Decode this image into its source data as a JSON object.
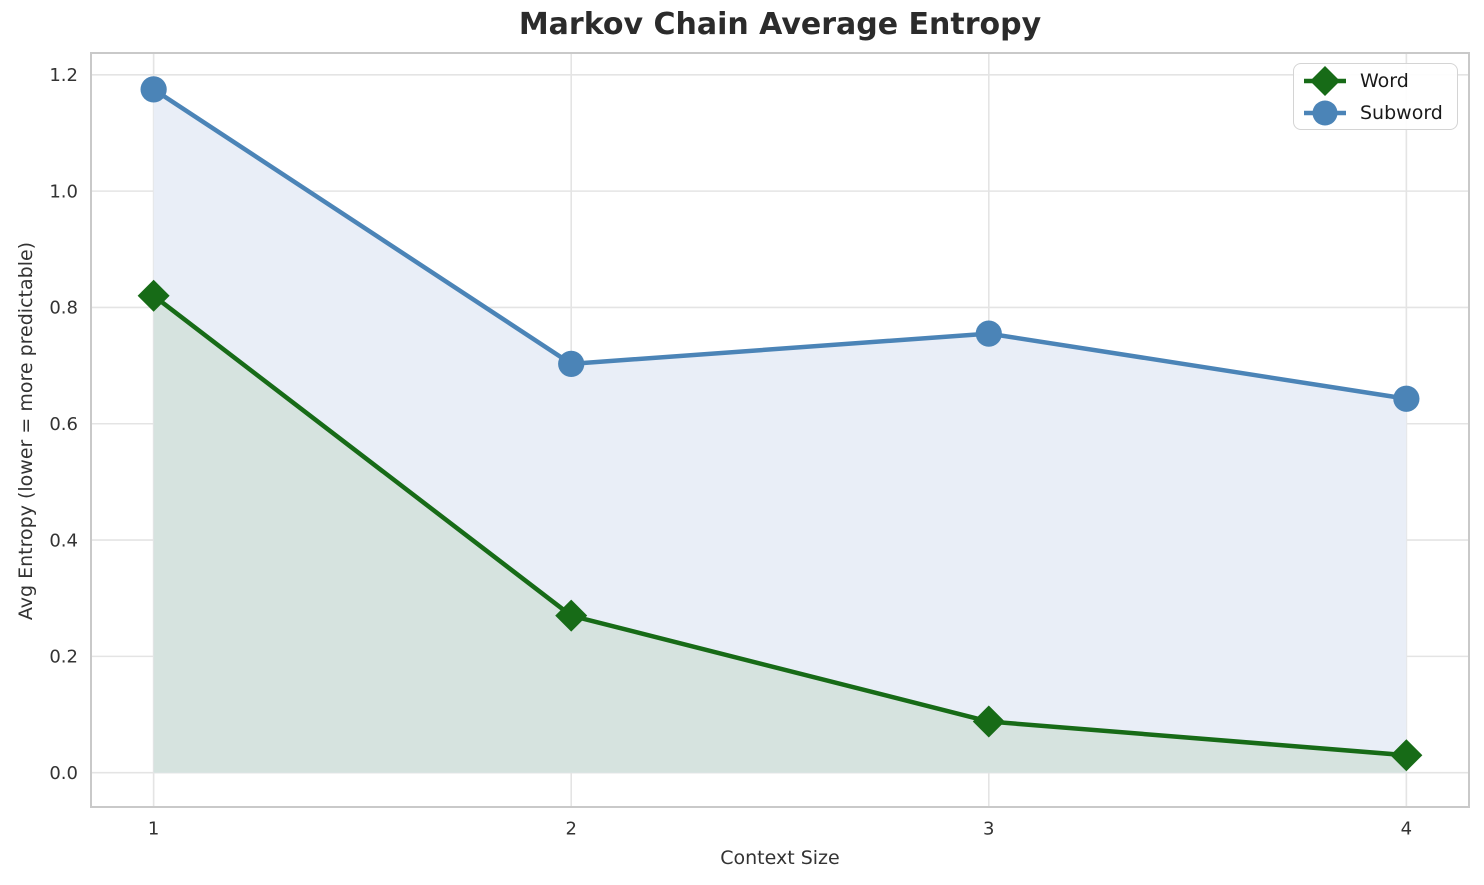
{
  "chart_data": {
    "type": "line",
    "title": "Markov Chain Average Entropy",
    "xlabel": "Context Size",
    "ylabel": "Avg Entropy (lower = more predictable)",
    "x": [
      1,
      2,
      3,
      4
    ],
    "series": [
      {
        "name": "Word",
        "values": [
          0.82,
          0.27,
          0.088,
          0.03
        ],
        "color": "#176b17",
        "marker": "diamond",
        "area_fill": "#d6e3df"
      },
      {
        "name": "Subword",
        "values": [
          1.175,
          0.703,
          0.755,
          0.643
        ],
        "color": "#4b84b7",
        "marker": "circle",
        "area_fill": "#e9eef7"
      }
    ],
    "fill_baseline": 0,
    "xticks": {
      "values": [
        1,
        2,
        3,
        4
      ],
      "labels": [
        "1",
        "2",
        "3",
        "4"
      ]
    },
    "yticks": {
      "values": [
        0.0,
        0.2,
        0.4,
        0.6,
        0.8,
        1.0,
        1.2
      ],
      "labels": [
        "0.0",
        "0.2",
        "0.4",
        "0.6",
        "0.8",
        "1.0",
        "1.2"
      ]
    },
    "xlim": [
      0.85,
      4.15
    ],
    "ylim": [
      -0.059,
      1.2375
    ],
    "grid": true,
    "legend_position": "upper right",
    "colors": {
      "grid": "#e4e4e4",
      "spine": "#c9c9c9",
      "title_text": "#2b2b2b",
      "label_text": "#333333",
      "tick_text": "#333333",
      "legend_text": "#1a1a1a",
      "legend_border": "#d4d4d4",
      "background": "#ffffff"
    }
  }
}
